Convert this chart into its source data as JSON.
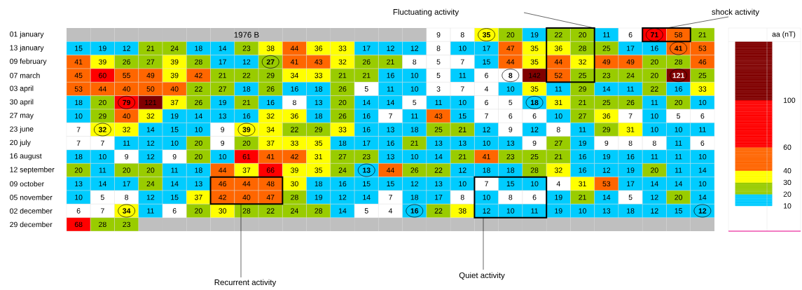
{
  "chart_data": {
    "type": "heatmap",
    "title": "1976 B",
    "clabel": "aa (nT)",
    "categories": [
      null,
      null,
      null,
      null,
      null,
      null,
      null,
      null,
      null,
      null,
      null,
      null,
      null,
      null,
      null,
      null,
      null,
      null,
      null,
      null,
      null,
      null,
      null,
      null,
      null,
      null,
      null
    ],
    "y_categories": [
      "01 january",
      "13 january",
      "09 february",
      "07 march",
      "03 april",
      "30 april",
      "27 may",
      "23 june",
      "20 july",
      "16 august",
      "12 september",
      "09 october",
      "05 november",
      "02 december",
      "29 december"
    ],
    "cells": [
      [
        null,
        null,
        null,
        null,
        null,
        null,
        null,
        null,
        null,
        null,
        null,
        null,
        null,
        null,
        null,
        9,
        8,
        35,
        20,
        19,
        22,
        20,
        11,
        6,
        71,
        58,
        21
      ],
      [
        15,
        19,
        12,
        21,
        24,
        18,
        14,
        23,
        38,
        44,
        36,
        33,
        17,
        12,
        12,
        8,
        10,
        17,
        47,
        35,
        36,
        28,
        25,
        17,
        16,
        41,
        53
      ],
      [
        41,
        39,
        26,
        27,
        39,
        28,
        17,
        12,
        27,
        41,
        43,
        32,
        26,
        21,
        8,
        5,
        7,
        15,
        44,
        35,
        44,
        32,
        49,
        49,
        20,
        28,
        46
      ],
      [
        45,
        60,
        55,
        49,
        39,
        42,
        21,
        22,
        29,
        34,
        33,
        21,
        21,
        16,
        10,
        5,
        11,
        6,
        8,
        142,
        52,
        25,
        23,
        24,
        20,
        121,
        25
      ],
      [
        53,
        44,
        40,
        50,
        40,
        22,
        27,
        18,
        26,
        16,
        18,
        26,
        5,
        11,
        10,
        3,
        7,
        4,
        10,
        35,
        11,
        29,
        14,
        11,
        22,
        16,
        33
      ],
      [
        18,
        20,
        79,
        121,
        37,
        26,
        19,
        21,
        16,
        8,
        13,
        20,
        14,
        14,
        5,
        11,
        10,
        6,
        5,
        18,
        31,
        21,
        25,
        26,
        11,
        20,
        10
      ],
      [
        10,
        29,
        40,
        32,
        19,
        14,
        13,
        16,
        32,
        36,
        18,
        26,
        16,
        7,
        11,
        43,
        15,
        7,
        6,
        6,
        10,
        27,
        36,
        7,
        10,
        5,
        6
      ],
      [
        7,
        32,
        32,
        14,
        15,
        10,
        9,
        39,
        34,
        22,
        29,
        33,
        16,
        13,
        18,
        25,
        21,
        12,
        9,
        12,
        8,
        11,
        29,
        31,
        10,
        10,
        11
      ],
      [
        7,
        7,
        11,
        12,
        10,
        20,
        9,
        20,
        37,
        33,
        35,
        18,
        17,
        16,
        21,
        13,
        13,
        10,
        13,
        9,
        27,
        19,
        9,
        8,
        8,
        11,
        6
      ],
      [
        18,
        10,
        9,
        12,
        9,
        20,
        10,
        61,
        41,
        42,
        31,
        27,
        23,
        13,
        10,
        14,
        21,
        41,
        23,
        25,
        21,
        16,
        19,
        16,
        11,
        11,
        10
      ],
      [
        20,
        11,
        20,
        20,
        11,
        18,
        44,
        37,
        66,
        39,
        35,
        24,
        13,
        44,
        26,
        22,
        12,
        18,
        18,
        28,
        32,
        16,
        12,
        19,
        20,
        11,
        14
      ],
      [
        13,
        14,
        17,
        24,
        14,
        13,
        46,
        44,
        48,
        30,
        18,
        16,
        15,
        15,
        12,
        13,
        10,
        7,
        15,
        10,
        4,
        31,
        53,
        17,
        14,
        14,
        10
      ],
      [
        10,
        5,
        8,
        12,
        15,
        37,
        42,
        40,
        47,
        28,
        19,
        12,
        14,
        7,
        18,
        17,
        8,
        10,
        8,
        6,
        19,
        21,
        14,
        5,
        12,
        20,
        14
      ],
      [
        6,
        7,
        34,
        11,
        6,
        20,
        30,
        28,
        22,
        24,
        28,
        14,
        5,
        4,
        16,
        22,
        38,
        12,
        10,
        11,
        19,
        10,
        13,
        18,
        12,
        15,
        12
      ],
      [
        68,
        28,
        23,
        null,
        null,
        null,
        null,
        null,
        null,
        null,
        null,
        null,
        null,
        null,
        null,
        null,
        null,
        null,
        null,
        null,
        null,
        null,
        null,
        null,
        null,
        null,
        null
      ]
    ],
    "clim": [
      0,
      150
    ],
    "cticks": [
      10,
      20,
      30,
      40,
      60,
      100
    ],
    "colors": [
      "#ffffff",
      "#00ccff",
      "#99cc00",
      "#ffff00",
      "#ff6600",
      "#ff0000",
      "#800000"
    ],
    "data_labels": true,
    "tick_labels": "y",
    "annotations": [
      "Fluctuating activity",
      "shock activity",
      "Recurrent activity",
      "Quiet activity"
    ]
  }
}
